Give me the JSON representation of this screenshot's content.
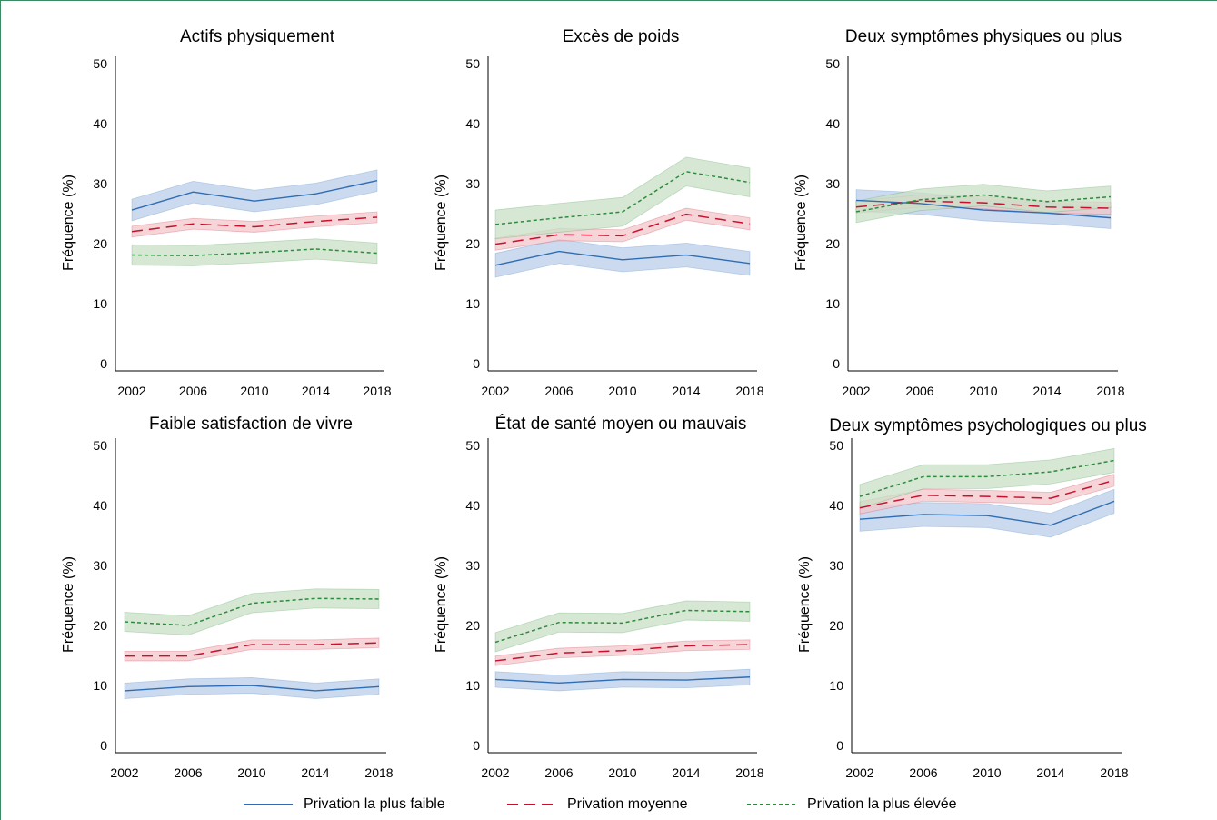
{
  "colors": {
    "low": "#2e6db3",
    "mid": "#c8102e",
    "high": "#2e8b3d",
    "low_fill": "#b9cdea",
    "mid_fill": "#f1c7c9",
    "high_fill": "#c8e0c6",
    "frame": "#3a8a62"
  },
  "legend": [
    {
      "label": "Privation la plus faible",
      "key": "low",
      "style": "solid"
    },
    {
      "label": "Privation moyenne",
      "key": "mid",
      "style": "dashed"
    },
    {
      "label": "Privation la plus élevée",
      "key": "high",
      "style": "dotted"
    }
  ],
  "chart_data": [
    {
      "type": "line",
      "title": "Actifs physiquement",
      "ylabel": "Fréquence (%)",
      "xlabel": "",
      "x": [
        "2002",
        "2006",
        "2010",
        "2014",
        "2018"
      ],
      "yticks": [
        "0",
        "10",
        "20",
        "30",
        "40",
        "50"
      ],
      "ylim": [
        0,
        50
      ],
      "series": [
        {
          "name": "Privation la plus faible",
          "key": "low",
          "values": [
            25.6,
            28.6,
            27.1,
            28.3,
            30.5
          ],
          "band": 1.8
        },
        {
          "name": "Privation moyenne",
          "key": "mid",
          "values": [
            22.0,
            23.3,
            22.8,
            23.7,
            24.4
          ],
          "band": 0.9
        },
        {
          "name": "Privation la plus élevée",
          "key": "high",
          "values": [
            18.1,
            18.0,
            18.5,
            19.1,
            18.4
          ],
          "band": 1.7
        }
      ]
    },
    {
      "type": "line",
      "title": "Excès de poids",
      "ylabel": "Fréquence (%)",
      "xlabel": "",
      "x": [
        "2002",
        "2006",
        "2010",
        "2014",
        "2018"
      ],
      "yticks": [
        "0",
        "10",
        "20",
        "30",
        "40",
        "50"
      ],
      "ylim": [
        0,
        50
      ],
      "series": [
        {
          "name": "Privation la plus faible",
          "key": "low",
          "values": [
            16.4,
            18.7,
            17.3,
            18.1,
            16.7
          ],
          "band": 2.0
        },
        {
          "name": "Privation moyenne",
          "key": "mid",
          "values": [
            19.9,
            21.5,
            21.3,
            24.9,
            23.3
          ],
          "band": 1.0
        },
        {
          "name": "Privation la plus élevée",
          "key": "high",
          "values": [
            23.2,
            24.3,
            25.3,
            32.0,
            30.2
          ],
          "band": 2.4
        }
      ]
    },
    {
      "type": "line",
      "title": "Deux symptômes physiques ou plus",
      "ylabel": "Fréquence (%)",
      "xlabel": "",
      "x": [
        "2002",
        "2006",
        "2010",
        "2014",
        "2018"
      ],
      "yticks": [
        "0",
        "10",
        "20",
        "30",
        "40",
        "50"
      ],
      "ylim": [
        0,
        50
      ],
      "series": [
        {
          "name": "Privation la plus faible",
          "key": "low",
          "values": [
            27.2,
            26.7,
            25.6,
            25.1,
            24.3
          ],
          "band": 1.8
        },
        {
          "name": "Privation moyenne",
          "key": "mid",
          "values": [
            26.1,
            27.1,
            26.8,
            26.1,
            25.9
          ],
          "band": 1.0
        },
        {
          "name": "Privation la plus élevée",
          "key": "high",
          "values": [
            25.3,
            27.3,
            28.1,
            27.0,
            27.8
          ],
          "band": 1.8
        }
      ]
    },
    {
      "type": "line",
      "title": "Faible satisfaction de vivre",
      "ylabel": "Fréquence (%)",
      "xlabel": "",
      "x": [
        "2002",
        "2006",
        "2010",
        "2014",
        "2018"
      ],
      "yticks": [
        "0",
        "10",
        "20",
        "30",
        "40",
        "50"
      ],
      "ylim": [
        0,
        50
      ],
      "series": [
        {
          "name": "Privation la plus faible",
          "key": "low",
          "values": [
            9.1,
            9.8,
            10.0,
            9.1,
            9.8
          ],
          "band": 1.3
        },
        {
          "name": "Privation moyenne",
          "key": "mid",
          "values": [
            14.9,
            14.9,
            16.8,
            16.8,
            17.1
          ],
          "band": 0.8
        },
        {
          "name": "Privation la plus élevée",
          "key": "high",
          "values": [
            20.6,
            20.0,
            23.7,
            24.5,
            24.4
          ],
          "band": 1.6
        }
      ]
    },
    {
      "type": "line",
      "title": "État de santé moyen ou mauvais",
      "ylabel": "Fréquence (%)",
      "xlabel": "",
      "x": [
        "2002",
        "2006",
        "2010",
        "2014",
        "2018"
      ],
      "yticks": [
        "0",
        "10",
        "20",
        "30",
        "40",
        "50"
      ],
      "ylim": [
        0,
        50
      ],
      "series": [
        {
          "name": "Privation la plus faible",
          "key": "low",
          "values": [
            11.0,
            10.4,
            11.0,
            10.9,
            11.4
          ],
          "band": 1.3
        },
        {
          "name": "Privation moyenne",
          "key": "mid",
          "values": [
            14.1,
            15.4,
            15.8,
            16.6,
            16.8
          ],
          "band": 0.8
        },
        {
          "name": "Privation la plus élevée",
          "key": "high",
          "values": [
            17.2,
            20.5,
            20.4,
            22.5,
            22.3
          ],
          "band": 1.6
        }
      ]
    },
    {
      "type": "line",
      "title": "Deux symptômes psychologiques ou plus",
      "ylabel": "Fréquence (%)",
      "xlabel": "",
      "x": [
        "2002",
        "2006",
        "2010",
        "2014",
        "2018"
      ],
      "yticks": [
        "0",
        "10",
        "20",
        "30",
        "40",
        "50"
      ],
      "ylim": [
        0,
        50
      ],
      "series": [
        {
          "name": "Privation la plus faible",
          "key": "low",
          "values": [
            37.7,
            38.5,
            38.3,
            36.7,
            40.7
          ],
          "band": 2.0
        },
        {
          "name": "Privation moyenne",
          "key": "mid",
          "values": [
            39.6,
            41.7,
            41.5,
            41.2,
            44.2
          ],
          "band": 1.0
        },
        {
          "name": "Privation la plus élevée",
          "key": "high",
          "values": [
            41.5,
            44.8,
            44.8,
            45.6,
            47.5
          ],
          "band": 2.0
        }
      ]
    }
  ]
}
